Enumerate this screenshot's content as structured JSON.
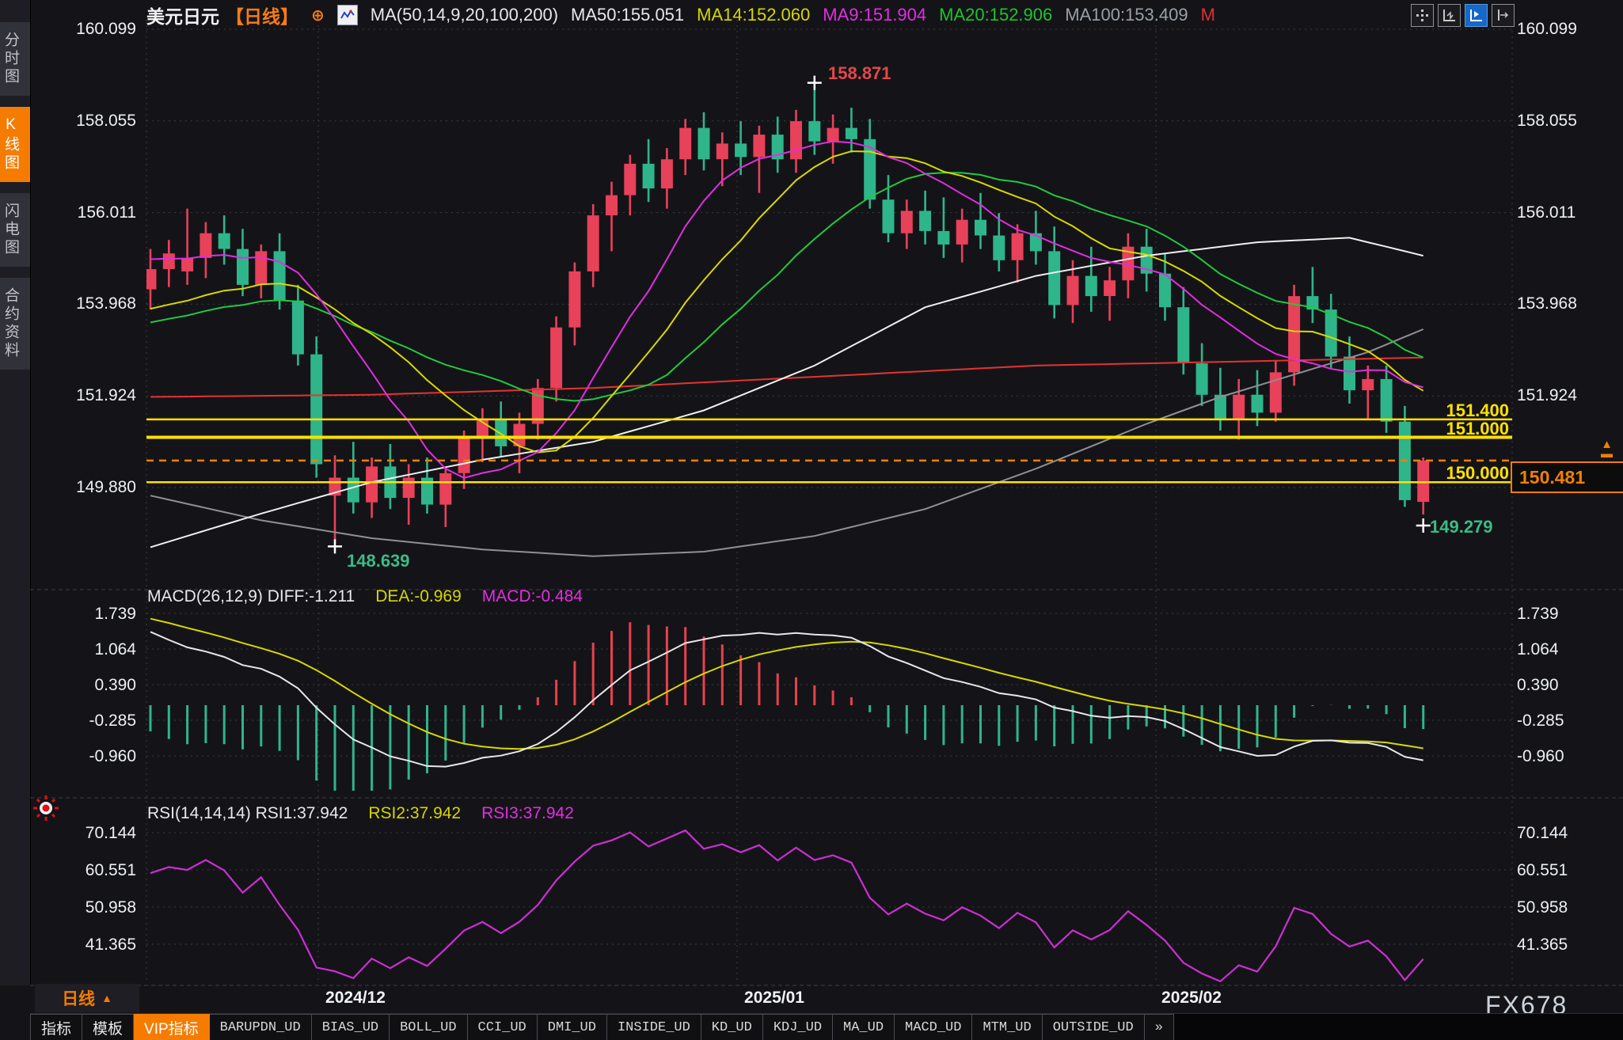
{
  "header": {
    "symbol": "美元日元",
    "period": "【日线】",
    "plus": "⊕",
    "ma_settings": "MA(50,14,9,20,100,200)",
    "ma50": "MA50:155.051",
    "ma14": "MA14:152.060",
    "ma9": "MA9:151.904",
    "ma20": "MA20:152.906",
    "ma100": "MA100:153.409",
    "ma200_partial": "M"
  },
  "sidebar": {
    "items": [
      {
        "label": "分时图",
        "active": false
      },
      {
        "label": "K线图",
        "active": true
      },
      {
        "label": "闪电图",
        "active": false
      },
      {
        "label": "合约资料",
        "active": false
      }
    ]
  },
  "price_axis": {
    "labels": [
      "160.099",
      "158.055",
      "156.011",
      "153.968",
      "151.924",
      "149.880"
    ]
  },
  "annotations": {
    "high": "158.871",
    "low": "148.639",
    "line1": "151.400",
    "line2": "151.000",
    "line3": "150.000",
    "price_box": "150.481",
    "last_low": "149.279",
    "covered_axis_label": "149.880",
    "jump_arrow": "▲"
  },
  "macd_panel": {
    "title": "MACD(26,12,9)",
    "diff_label": "DIFF:-1.211",
    "dea_label": "DEA:-0.969",
    "macd_label": "MACD:-0.484",
    "axis": [
      "1.739",
      "1.064",
      "0.390",
      "-0.285",
      "-0.960"
    ]
  },
  "rsi_panel": {
    "title": "RSI(14,14,14)",
    "rsi1_label": "RSI1:37.942",
    "rsi2_label": "RSI2:37.942",
    "rsi3_label": "RSI3:37.942",
    "axis": [
      "70.144",
      "60.551",
      "50.958",
      "41.365"
    ]
  },
  "footer": {
    "period_label": "日线",
    "watermark": "FX678",
    "tabs": [
      {
        "label": "指标",
        "active": false,
        "mono": false
      },
      {
        "label": "模板",
        "active": false,
        "mono": false
      },
      {
        "label": "VIP指标",
        "active": true,
        "mono": false
      },
      {
        "label": "BARUPDN_UD",
        "active": false,
        "mono": true
      },
      {
        "label": "BIAS_UD",
        "active": false,
        "mono": true
      },
      {
        "label": "BOLL_UD",
        "active": false,
        "mono": true
      },
      {
        "label": "CCI_UD",
        "active": false,
        "mono": true
      },
      {
        "label": "DMI_UD",
        "active": false,
        "mono": true
      },
      {
        "label": "INSIDE_UD",
        "active": false,
        "mono": true
      },
      {
        "label": "KD_UD",
        "active": false,
        "mono": true
      },
      {
        "label": "KDJ_UD",
        "active": false,
        "mono": true
      },
      {
        "label": "MA_UD",
        "active": false,
        "mono": true
      },
      {
        "label": "MACD_UD",
        "active": false,
        "mono": true
      },
      {
        "label": "MTM_UD",
        "active": false,
        "mono": true
      },
      {
        "label": "OUTSIDE_UD",
        "active": false,
        "mono": true
      },
      {
        "label": "»",
        "active": false,
        "mono": true
      }
    ]
  },
  "chart_data": {
    "type": "candlestick",
    "title": "美元日元 日线 (USD/JPY daily)",
    "x_labels": [
      "2024/12",
      "2025/01",
      "2025/02"
    ],
    "main_axis_values": [
      160.099,
      158.055,
      156.011,
      153.968,
      151.924,
      149.88
    ],
    "macd_axis_values": [
      1.739,
      1.064,
      0.39,
      -0.285,
      -0.96
    ],
    "rsi_axis_values": [
      70.144,
      60.551,
      50.958,
      41.365
    ],
    "levels": {
      "hlines": [
        151.4,
        151.0,
        150.0
      ],
      "current_price": 150.481,
      "high": 158.871,
      "high_index": 36,
      "low": 148.639,
      "low_index": 10,
      "last_low": 149.279,
      "last_index": 69
    },
    "candles": [
      [
        154.3,
        155.2,
        153.85,
        154.75
      ],
      [
        154.75,
        155.4,
        154.35,
        155.1
      ],
      [
        154.7,
        156.1,
        154.4,
        155.0
      ],
      [
        155.0,
        155.8,
        154.55,
        155.55
      ],
      [
        155.55,
        155.95,
        154.85,
        155.2
      ],
      [
        155.2,
        155.65,
        154.15,
        154.4
      ],
      [
        154.4,
        155.3,
        154.1,
        155.15
      ],
      [
        155.15,
        155.55,
        153.85,
        154.05
      ],
      [
        154.05,
        154.4,
        152.6,
        152.85
      ],
      [
        152.85,
        153.25,
        150.1,
        150.4
      ],
      [
        149.7,
        150.6,
        148.639,
        150.1
      ],
      [
        150.1,
        150.9,
        149.3,
        149.55
      ],
      [
        149.55,
        150.55,
        149.2,
        150.35
      ],
      [
        150.35,
        150.85,
        149.4,
        149.65
      ],
      [
        149.65,
        150.4,
        149.05,
        150.1
      ],
      [
        150.1,
        150.55,
        149.3,
        149.5
      ],
      [
        149.5,
        150.35,
        149.0,
        150.2
      ],
      [
        150.2,
        151.15,
        149.85,
        151.0
      ],
      [
        151.0,
        151.65,
        150.45,
        151.4
      ],
      [
        151.4,
        151.8,
        150.55,
        150.8
      ],
      [
        150.8,
        151.55,
        150.2,
        151.3
      ],
      [
        151.3,
        152.3,
        150.95,
        152.1
      ],
      [
        152.1,
        153.7,
        151.8,
        153.45
      ],
      [
        153.45,
        154.9,
        153.05,
        154.7
      ],
      [
        154.7,
        156.2,
        154.35,
        155.95
      ],
      [
        155.95,
        156.7,
        155.15,
        156.4
      ],
      [
        156.4,
        157.3,
        155.95,
        157.1
      ],
      [
        157.1,
        157.65,
        156.25,
        156.55
      ],
      [
        156.55,
        157.45,
        156.1,
        157.2
      ],
      [
        157.2,
        158.1,
        156.85,
        157.9
      ],
      [
        157.9,
        158.25,
        156.95,
        157.2
      ],
      [
        157.2,
        157.8,
        156.6,
        157.55
      ],
      [
        157.55,
        158.05,
        156.85,
        157.25
      ],
      [
        157.25,
        157.95,
        156.45,
        157.75
      ],
      [
        157.75,
        158.15,
        156.9,
        157.2
      ],
      [
        157.2,
        158.3,
        156.9,
        158.05
      ],
      [
        158.05,
        158.871,
        157.3,
        157.6
      ],
      [
        157.6,
        158.2,
        157.1,
        157.9
      ],
      [
        157.9,
        158.35,
        157.35,
        157.65
      ],
      [
        157.65,
        158.1,
        156.1,
        156.3
      ],
      [
        156.3,
        156.85,
        155.35,
        155.55
      ],
      [
        155.55,
        156.3,
        155.2,
        156.05
      ],
      [
        156.05,
        156.5,
        155.3,
        155.6
      ],
      [
        155.6,
        156.35,
        155.0,
        155.3
      ],
      [
        155.3,
        156.1,
        154.9,
        155.85
      ],
      [
        155.85,
        156.45,
        155.2,
        155.5
      ],
      [
        155.5,
        156.0,
        154.7,
        154.95
      ],
      [
        154.95,
        155.75,
        154.45,
        155.55
      ],
      [
        155.55,
        156.05,
        154.85,
        155.15
      ],
      [
        155.15,
        155.7,
        153.65,
        153.95
      ],
      [
        153.95,
        154.95,
        153.55,
        154.6
      ],
      [
        154.6,
        155.25,
        153.8,
        154.15
      ],
      [
        154.15,
        154.8,
        153.6,
        154.5
      ],
      [
        154.5,
        155.55,
        154.1,
        155.25
      ],
      [
        155.25,
        155.65,
        154.25,
        154.65
      ],
      [
        154.65,
        155.1,
        153.6,
        153.9
      ],
      [
        153.9,
        154.35,
        152.4,
        152.65
      ],
      [
        152.65,
        153.1,
        151.7,
        151.95
      ],
      [
        151.95,
        152.55,
        151.15,
        151.4
      ],
      [
        151.4,
        152.3,
        150.95,
        151.95
      ],
      [
        151.95,
        152.5,
        151.25,
        151.55
      ],
      [
        151.55,
        152.7,
        151.35,
        152.45
      ],
      [
        152.45,
        154.4,
        152.15,
        154.15
      ],
      [
        154.15,
        154.8,
        153.55,
        153.85
      ],
      [
        153.85,
        154.2,
        152.55,
        152.8
      ],
      [
        152.8,
        153.25,
        151.75,
        152.05
      ],
      [
        152.05,
        152.6,
        151.4,
        152.3
      ],
      [
        152.3,
        152.6,
        151.1,
        151.35
      ],
      [
        151.35,
        151.7,
        149.45,
        149.6
      ],
      [
        149.56,
        150.55,
        149.279,
        150.481
      ]
    ],
    "ma_overlays": {
      "ma50_points": [
        [
          0,
          148.55
        ],
        [
          6,
          149.3
        ],
        [
          12,
          150.0
        ],
        [
          18,
          150.5
        ],
        [
          24,
          150.9
        ],
        [
          30,
          151.6
        ],
        [
          36,
          152.6
        ],
        [
          42,
          153.9
        ],
        [
          48,
          154.6
        ],
        [
          54,
          155.05
        ],
        [
          60,
          155.35
        ],
        [
          65,
          155.45
        ],
        [
          69,
          155.05
        ]
      ],
      "ma100_points": [
        [
          0,
          149.7
        ],
        [
          6,
          149.15
        ],
        [
          12,
          148.75
        ],
        [
          18,
          148.5
        ],
        [
          24,
          148.35
        ],
        [
          30,
          148.45
        ],
        [
          36,
          148.8
        ],
        [
          42,
          149.4
        ],
        [
          48,
          150.3
        ],
        [
          54,
          151.3
        ],
        [
          58,
          151.9
        ],
        [
          62,
          152.4
        ],
        [
          66,
          152.9
        ],
        [
          69,
          153.41
        ]
      ],
      "ma200_points": [
        [
          0,
          151.9
        ],
        [
          12,
          151.95
        ],
        [
          24,
          152.1
        ],
        [
          36,
          152.35
        ],
        [
          48,
          152.6
        ],
        [
          60,
          152.7
        ],
        [
          69,
          152.78
        ]
      ]
    },
    "sma_seeds": {
      "ma9": 155.0,
      "ma14": 153.8,
      "ma20": 153.5
    },
    "macd_seeds": {
      "ema12": 155.9,
      "ema26": 154.3,
      "dea": 1.7
    },
    "rsi_seeds": {
      "avg_gain": 0.4,
      "avg_loss": 0.27
    },
    "colors": {
      "up": "#e8415a",
      "down": "#2fb58a",
      "ma9": "#e02ee0",
      "ma14": "#d8d800",
      "ma20": "#22c93e",
      "ma50": "#f0f0f0",
      "ma100": "#8f8f96",
      "ma200": "#e63232",
      "hline": "#ffe100",
      "current": "#f08000",
      "diff": "#e8e8e8",
      "dea": "#d8d800",
      "hist_up": "#e8414d",
      "hist_down": "#2fb58a",
      "rsi": "#cc2fd4",
      "grid": "#3a3a44",
      "cross": "#ffffff"
    }
  }
}
